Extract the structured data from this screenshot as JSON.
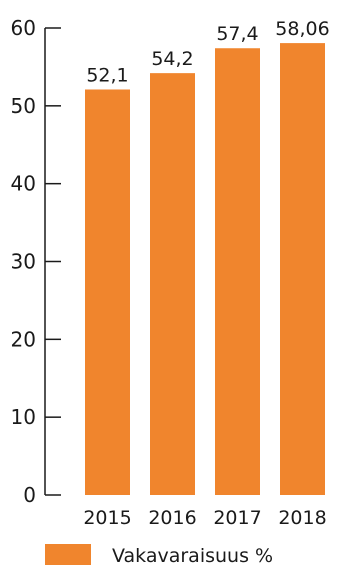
{
  "chart_data": {
    "type": "bar",
    "categories": [
      "2015",
      "2016",
      "2017",
      "2018"
    ],
    "series": [
      {
        "name": "Vakavaraisuus %",
        "values": [
          52.1,
          54.2,
          57.4,
          58.06
        ],
        "value_labels": [
          "52,1",
          "54,2",
          "57,4",
          "58,06"
        ]
      }
    ],
    "ylim": [
      0,
      60
    ],
    "yticks": [
      0,
      10,
      20,
      30,
      40,
      50,
      60
    ],
    "grid": false,
    "legend_position": "bottom-left",
    "colors": {
      "bar": "#f0852d",
      "axis": "#1a1a1a",
      "text": "#1a1a1a"
    }
  }
}
